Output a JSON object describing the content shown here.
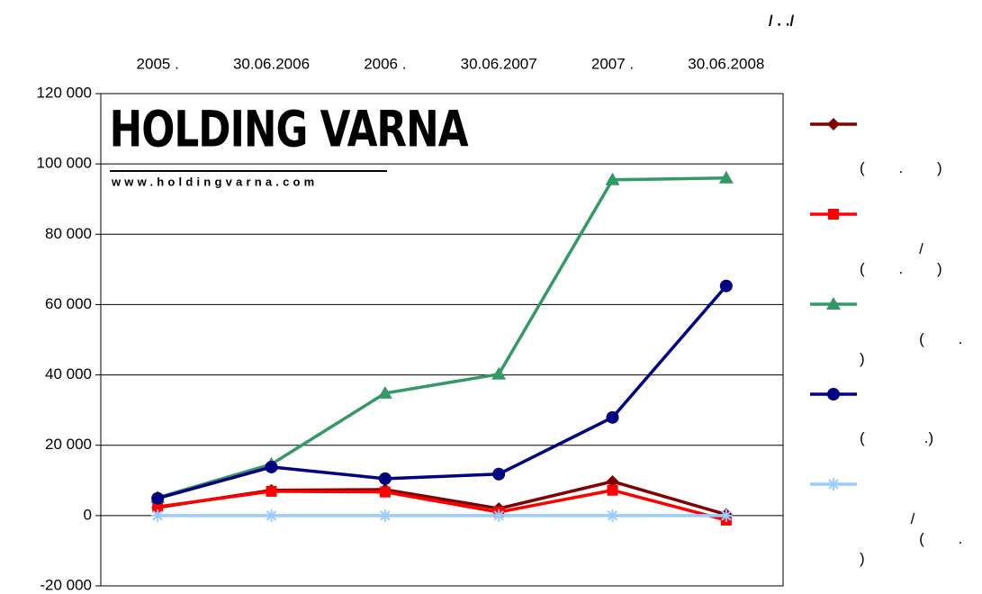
{
  "chart_data": {
    "type": "line",
    "title": "/       .      ./",
    "logo": {
      "name": "HOLDING VARNA",
      "url": "www.holdingvarna.com"
    },
    "categories": [
      "2005 .",
      "30.06.2006",
      "2006 .",
      "30.06.2007",
      "2007 .",
      "30.06.2008"
    ],
    "ylim": [
      -20000,
      120000
    ],
    "yticks": [
      {
        "value": -20000,
        "label": "-20 000"
      },
      0,
      {
        "value": 20000,
        "label": "20 000"
      },
      {
        "value": 40000,
        "label": "40 000"
      },
      {
        "value": 60000,
        "label": "60 000"
      },
      {
        "value": 80000,
        "label": "80 000"
      },
      {
        "value": 100000,
        "label": "100 000"
      },
      {
        "value": 120000,
        "label": "120 000"
      }
    ],
    "grid": true,
    "legend": "right",
    "series": [
      {
        "name": "(        .        )",
        "color": "#800000",
        "marker": "diamond",
        "values": [
          2300,
          7200,
          7400,
          2000,
          9700,
          300
        ]
      },
      {
        "name": "              /\n(        .        )",
        "color": "#ff0000",
        "marker": "square",
        "values": [
          2500,
          6900,
          6700,
          1000,
          7200,
          -1300
        ]
      },
      {
        "name": "              (        .\n)",
        "color": "#339966",
        "marker": "triangle",
        "values": [
          5100,
          14600,
          34800,
          40200,
          95500,
          96000
        ]
      },
      {
        "name": "(              .)",
        "color": "#000080",
        "marker": "circle",
        "values": [
          4900,
          13800,
          10500,
          11800,
          27900,
          65300
        ]
      },
      {
        "name": "            /\n              (        .\n)",
        "color": "#99ccff",
        "marker": "star",
        "values": [
          0,
          0,
          0,
          0,
          0,
          0
        ]
      }
    ]
  }
}
